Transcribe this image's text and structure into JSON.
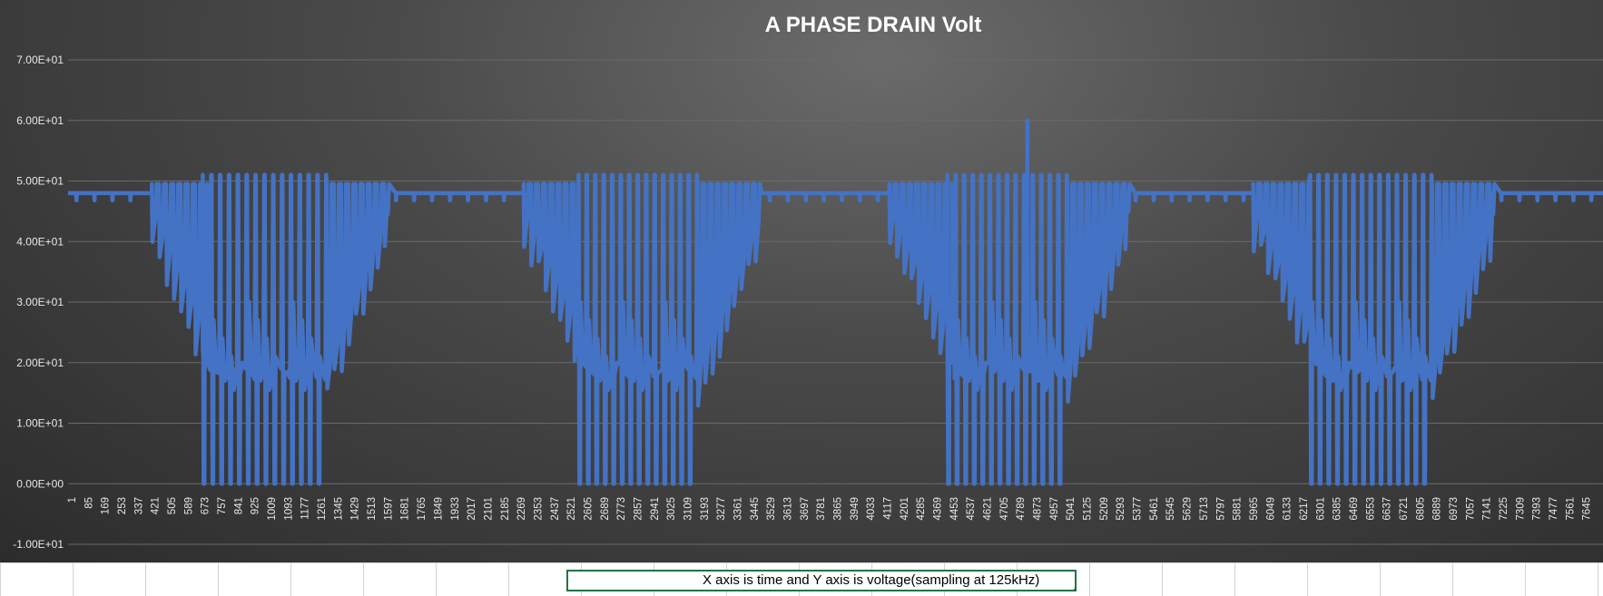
{
  "chart_data": {
    "type": "line",
    "title": "A PHASE DRAIN Volt",
    "xlabel": "",
    "ylabel": "",
    "ylim": [
      -10,
      70
    ],
    "yticks": [
      -10,
      0,
      10,
      20,
      30,
      40,
      50,
      60,
      70
    ],
    "ytick_labels": [
      "-1.00E+01",
      "0.00E+00",
      "1.00E+01",
      "2.00E+01",
      "3.00E+01",
      "4.00E+01",
      "5.00E+01",
      "6.00E+01",
      "7.00E+01"
    ],
    "x_categories": [
      "1",
      "85",
      "169",
      "253",
      "337",
      "421",
      "505",
      "589",
      "673",
      "757",
      "841",
      "925",
      "1009",
      "1093",
      "1177",
      "1261",
      "1345",
      "1429",
      "1513",
      "1597",
      "1681",
      "1765",
      "1849",
      "1933",
      "2017",
      "2101",
      "2185",
      "2269",
      "2353",
      "2437",
      "2521",
      "2605",
      "2689",
      "2773",
      "2857",
      "2941",
      "3025",
      "3109",
      "3193",
      "3277",
      "3361",
      "3445",
      "3529",
      "3613",
      "3697",
      "3781",
      "3865",
      "3949",
      "4033",
      "4117",
      "4201",
      "4285",
      "4369",
      "4453",
      "4537",
      "4621",
      "4705",
      "4789",
      "4873",
      "4957",
      "5041",
      "5125",
      "5209",
      "5293",
      "5377",
      "5461",
      "5545",
      "5629",
      "5713",
      "5797",
      "5881",
      "5965",
      "6049",
      "6133",
      "6217",
      "6301",
      "6385",
      "6469",
      "6553",
      "6637",
      "6721",
      "6805",
      "6889",
      "6973",
      "7057",
      "7141",
      "7225",
      "7309",
      "7393",
      "7477",
      "7561",
      "7645"
    ],
    "x_range": [
      1,
      7680
    ],
    "series": [
      {
        "name": "A PHASE DRAIN Volt",
        "color": "#4472c4",
        "baseline": 48,
        "peak": [
          4800,
          60
        ],
        "bursts": [
          {
            "start": 420,
            "end": 1600,
            "dips_start": 675,
            "dips_end": 1295
          },
          {
            "start": 2280,
            "end": 3470,
            "dips_start": 2555,
            "dips_end": 3150
          },
          {
            "start": 4110,
            "end": 5300,
            "dips_start": 4400,
            "dips_end": 5000
          },
          {
            "start": 5930,
            "end": 7130,
            "dips_start": 6215,
            "dips_end": 6825
          }
        ]
      }
    ]
  },
  "note": {
    "text": "X axis is time and Y axis is voltage(sampling at 125kHz)"
  }
}
